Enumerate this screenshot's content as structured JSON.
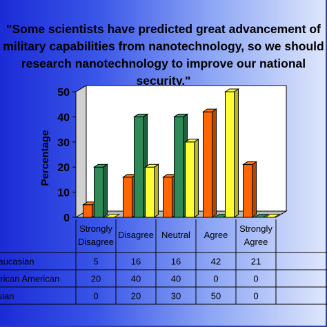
{
  "chart_data": {
    "type": "bar",
    "title": "\"Some scientists have predicted great advancement of\nmilitary capabilities from nanotechnology, so we should\nresearch nanotechnology to improve our national\nsecurity.\"",
    "ylabel": "Percentage",
    "xlabel": "",
    "ylim": [
      0,
      50
    ],
    "yticks": [
      "0",
      "10",
      "20",
      "30",
      "40",
      "50"
    ],
    "categories": [
      "Strongly Disagree",
      "Disagree",
      "Neutral",
      "Agree",
      "Strongly Agree"
    ],
    "category_lines": [
      [
        "Strongly",
        "Disagree"
      ],
      [
        "Disagree"
      ],
      [
        "Neutral"
      ],
      [
        "Agree"
      ],
      [
        "Strongly",
        "Agree"
      ]
    ],
    "series": [
      {
        "name": "Caucasian",
        "values": [
          5,
          16,
          16,
          42,
          21
        ],
        "color": "#ff6600"
      },
      {
        "name": "African American",
        "values": [
          20,
          40,
          40,
          0,
          0
        ],
        "color": "#2e8b57"
      },
      {
        "name": "Asian",
        "values": [
          0,
          20,
          30,
          50,
          0
        ],
        "color": "#ffff33"
      }
    ],
    "table_rows": [
      {
        "label": "Caucasian",
        "values": [
          "5",
          "16",
          "16",
          "42",
          "21"
        ]
      },
      {
        "label": "African American",
        "values": [
          "20",
          "40",
          "40",
          "0",
          "0"
        ]
      },
      {
        "label": "Asian",
        "values": [
          "0",
          "20",
          "30",
          "50",
          "0"
        ]
      }
    ],
    "grid": false,
    "legend": "data table"
  }
}
